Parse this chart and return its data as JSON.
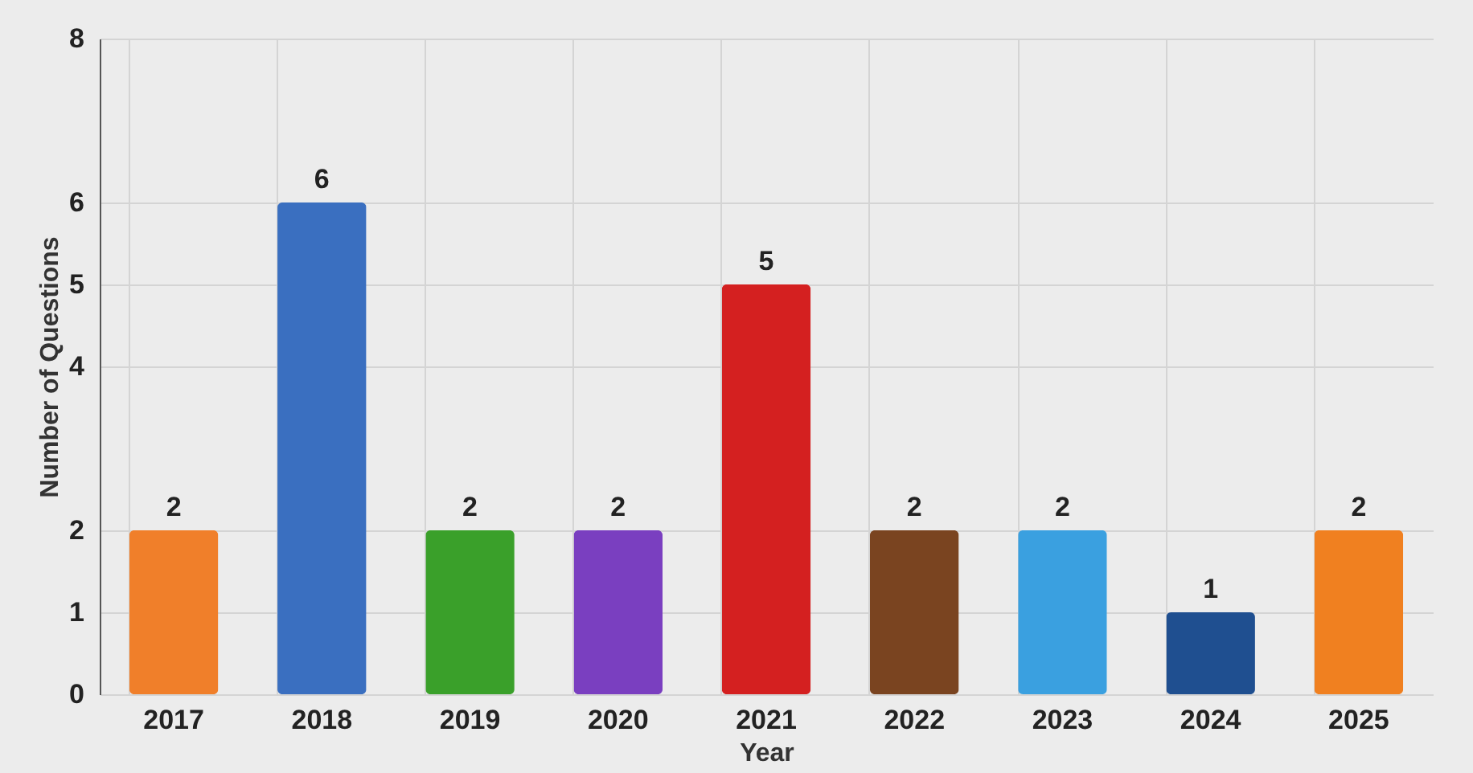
{
  "chart_data": {
    "type": "bar",
    "xlabel": "Year",
    "ylabel": "Number of Questions",
    "categories": [
      "2017",
      "2018",
      "2019",
      "2020",
      "2021",
      "2022",
      "2023",
      "2024",
      "2025"
    ],
    "values": [
      2,
      6,
      2,
      2,
      5,
      2,
      2,
      1,
      2
    ],
    "colors": [
      "#f07f2a",
      "#3a6fc0",
      "#3aa02a",
      "#7a3fc0",
      "#d42020",
      "#7a4420",
      "#3aa0e0",
      "#1f4f90",
      "#f08020"
    ],
    "ylim": [
      0,
      8
    ],
    "yticks": [
      0,
      1,
      2,
      4,
      5,
      6,
      8
    ],
    "grid": true,
    "data_labels": true
  }
}
